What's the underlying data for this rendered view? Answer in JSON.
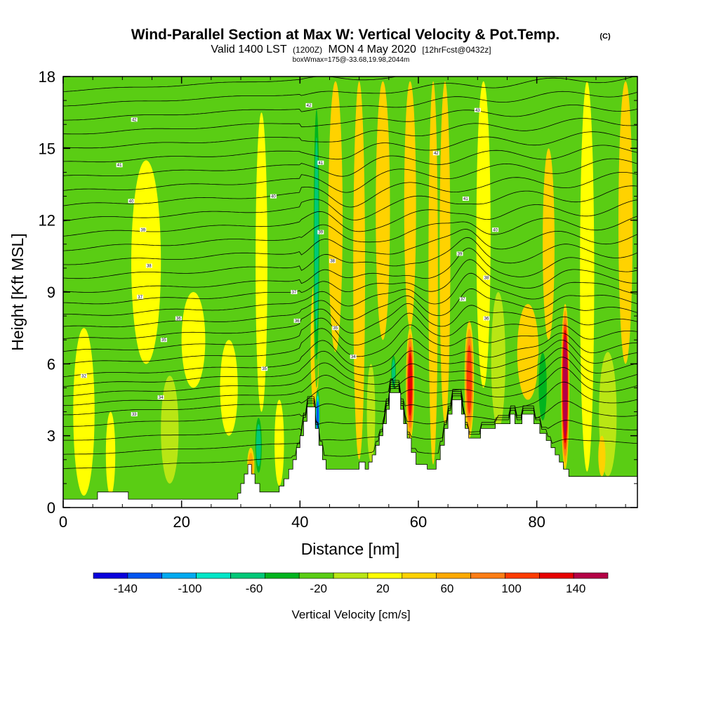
{
  "chart_data": {
    "type": "heatmap",
    "title": "Wind-Parallel Section at Max W: Vertical Velocity & Pot.Temp.",
    "title_tag": "(C)",
    "subtitle": {
      "valid_prefix": "Valid 1400 LST",
      "valid_utc": "(1200Z)",
      "valid_date": "MON 4 May 2020",
      "forecast": "[12hrFcst@0432z]",
      "box_info": "boxWmax=175@-33.68,19.98,2044m"
    },
    "xlabel": "Distance [nm]",
    "ylabel": "Height [Kft MSL]",
    "xlim": [
      0,
      97
    ],
    "ylim": [
      0,
      18
    ],
    "x_ticks": [
      {
        "value": 0,
        "label": "0"
      },
      {
        "value": 20,
        "label": "20"
      },
      {
        "value": 40,
        "label": "40"
      },
      {
        "value": 60,
        "label": "60"
      },
      {
        "value": 80,
        "label": "80"
      }
    ],
    "y_ticks": [
      {
        "value": 0,
        "label": "0"
      },
      {
        "value": 3,
        "label": "3"
      },
      {
        "value": 6,
        "label": "6"
      },
      {
        "value": 9,
        "label": "9"
      },
      {
        "value": 12,
        "label": "12"
      },
      {
        "value": 15,
        "label": "15"
      },
      {
        "value": 18,
        "label": "18"
      }
    ],
    "colorbar": {
      "title": "Vertical Velocity [cm/s]",
      "min": -160,
      "max": 160,
      "step": 20,
      "colors": [
        "#0a00dc",
        "#0055f0",
        "#00aaf0",
        "#00e6c8",
        "#00c878",
        "#00b41e",
        "#5acd14",
        "#b9e614",
        "#ffff00",
        "#ffd200",
        "#ffaa00",
        "#ff7d14",
        "#ff3c00",
        "#e60000",
        "#b40046"
      ],
      "labels": [
        {
          "value": -140,
          "label": "-140"
        },
        {
          "value": -100,
          "label": "-100"
        },
        {
          "value": -60,
          "label": "-60"
        },
        {
          "value": -20,
          "label": "-20"
        },
        {
          "value": 20,
          "label": "20"
        },
        {
          "value": 60,
          "label": "60"
        },
        {
          "value": 100,
          "label": "100"
        },
        {
          "value": 140,
          "label": "140"
        }
      ]
    },
    "terrain_profile": [
      [
        0,
        0.35
      ],
      [
        5.8,
        0.35
      ],
      [
        5.8,
        0.65
      ],
      [
        11,
        0.65
      ],
      [
        11,
        0.35
      ],
      [
        29.5,
        0.35
      ],
      [
        29.5,
        0.6
      ],
      [
        30,
        0.6
      ],
      [
        30,
        1.0
      ],
      [
        30.6,
        1.0
      ],
      [
        30.6,
        1.4
      ],
      [
        31.2,
        1.4
      ],
      [
        31.2,
        1.8
      ],
      [
        31.8,
        1.8
      ],
      [
        31.8,
        1.4
      ],
      [
        32.4,
        1.4
      ],
      [
        32.4,
        1.0
      ],
      [
        33.2,
        1.0
      ],
      [
        33.2,
        0.65
      ],
      [
        36.5,
        0.65
      ],
      [
        36.5,
        0.9
      ],
      [
        37.3,
        0.9
      ],
      [
        37.3,
        1.2
      ],
      [
        38.1,
        1.2
      ],
      [
        38.1,
        1.6
      ],
      [
        38.8,
        1.6
      ],
      [
        38.8,
        2.0
      ],
      [
        39.4,
        2.0
      ],
      [
        39.4,
        2.5
      ],
      [
        40,
        2.5
      ],
      [
        40,
        3.0
      ],
      [
        40.6,
        3.0
      ],
      [
        40.6,
        3.6
      ],
      [
        41.2,
        3.6
      ],
      [
        41.2,
        4.2
      ],
      [
        42.6,
        4.2
      ],
      [
        42.6,
        3.3
      ],
      [
        43.2,
        3.3
      ],
      [
        43.2,
        2.6
      ],
      [
        43.8,
        2.6
      ],
      [
        43.8,
        2.0
      ],
      [
        44.4,
        2.0
      ],
      [
        44.4,
        1.6
      ],
      [
        50,
        1.6
      ],
      [
        50,
        1.9
      ],
      [
        51,
        1.9
      ],
      [
        51,
        1.6
      ],
      [
        51.6,
        1.6
      ],
      [
        51.6,
        1.9
      ],
      [
        52.2,
        1.9
      ],
      [
        52.2,
        2.2
      ],
      [
        52.8,
        2.2
      ],
      [
        52.8,
        2.6
      ],
      [
        53.4,
        2.6
      ],
      [
        53.4,
        3.0
      ],
      [
        54,
        3.0
      ],
      [
        54,
        3.5
      ],
      [
        54.6,
        3.5
      ],
      [
        54.6,
        4.1
      ],
      [
        55.1,
        4.1
      ],
      [
        55.1,
        4.8
      ],
      [
        57,
        4.8
      ],
      [
        57,
        4.1
      ],
      [
        57.5,
        4.1
      ],
      [
        57.5,
        3.5
      ],
      [
        58.1,
        3.5
      ],
      [
        58.1,
        2.9
      ],
      [
        58.8,
        2.9
      ],
      [
        58.8,
        2.3
      ],
      [
        59.6,
        2.3
      ],
      [
        59.6,
        1.8
      ],
      [
        61.5,
        1.8
      ],
      [
        61.5,
        1.6
      ],
      [
        63,
        1.6
      ],
      [
        63,
        2.0
      ],
      [
        63.7,
        2.0
      ],
      [
        63.7,
        2.6
      ],
      [
        64.4,
        2.6
      ],
      [
        64.4,
        3.3
      ],
      [
        65,
        3.3
      ],
      [
        65,
        3.9
      ],
      [
        65.7,
        3.9
      ],
      [
        65.7,
        4.5
      ],
      [
        67.3,
        4.5
      ],
      [
        67.3,
        3.9
      ],
      [
        67.9,
        3.9
      ],
      [
        67.9,
        3.3
      ],
      [
        68.5,
        3.3
      ],
      [
        68.5,
        2.9
      ],
      [
        70.5,
        2.9
      ],
      [
        70.5,
        3.3
      ],
      [
        73,
        3.3
      ],
      [
        73,
        3.5
      ],
      [
        75.5,
        3.5
      ],
      [
        75.5,
        3.9
      ],
      [
        76.3,
        3.9
      ],
      [
        76.3,
        3.5
      ],
      [
        77.5,
        3.5
      ],
      [
        77.5,
        3.9
      ],
      [
        79.5,
        3.9
      ],
      [
        79.5,
        3.5
      ],
      [
        80.5,
        3.5
      ],
      [
        80.5,
        3.1
      ],
      [
        81.6,
        3.1
      ],
      [
        81.6,
        2.8
      ],
      [
        82.4,
        2.8
      ],
      [
        82.4,
        2.5
      ],
      [
        83.1,
        2.5
      ],
      [
        83.1,
        2.2
      ],
      [
        83.8,
        2.2
      ],
      [
        83.8,
        1.9
      ],
      [
        84.5,
        1.9
      ],
      [
        84.5,
        1.6
      ],
      [
        85.4,
        1.6
      ],
      [
        85.4,
        1.3
      ],
      [
        97,
        1.3
      ]
    ],
    "theta_contours": {
      "base_levels_kft": [
        1.6,
        2.2,
        2.8,
        3.4,
        3.9,
        4.3,
        4.7,
        5.1,
        5.5,
        6.0,
        6.5,
        7.0,
        7.5,
        8.0,
        8.5,
        9.0,
        9.6,
        10.2,
        10.8,
        11.4,
        12.0,
        12.6,
        13.2,
        13.8,
        14.4,
        15.0,
        15.6,
        16.2,
        16.8,
        17.4,
        18.0
      ],
      "labels": [
        {
          "x": 3.5,
          "y": 5.5,
          "label": "32"
        },
        {
          "x": 12,
          "y": 3.9,
          "label": "33"
        },
        {
          "x": 16.5,
          "y": 4.6,
          "label": "34"
        },
        {
          "x": 17,
          "y": 7.0,
          "label": "35"
        },
        {
          "x": 19.5,
          "y": 7.9,
          "label": "36"
        },
        {
          "x": 13,
          "y": 8.8,
          "label": "37"
        },
        {
          "x": 14.5,
          "y": 10.1,
          "label": "38"
        },
        {
          "x": 13.5,
          "y": 11.6,
          "label": "39"
        },
        {
          "x": 11.5,
          "y": 12.8,
          "label": "40"
        },
        {
          "x": 9.5,
          "y": 14.3,
          "label": "41"
        },
        {
          "x": 12,
          "y": 16.2,
          "label": "42"
        },
        {
          "x": 34,
          "y": 5.8,
          "label": "35"
        },
        {
          "x": 39.5,
          "y": 7.8,
          "label": "36"
        },
        {
          "x": 39,
          "y": 9.0,
          "label": "37"
        },
        {
          "x": 45.5,
          "y": 10.3,
          "label": "38"
        },
        {
          "x": 43.5,
          "y": 11.5,
          "label": "39"
        },
        {
          "x": 35.5,
          "y": 13.0,
          "label": "40"
        },
        {
          "x": 43.5,
          "y": 14.4,
          "label": "41"
        },
        {
          "x": 41.5,
          "y": 16.8,
          "label": "42"
        },
        {
          "x": 46,
          "y": 7.5,
          "label": "35"
        },
        {
          "x": 49,
          "y": 6.3,
          "label": "34"
        },
        {
          "x": 67.5,
          "y": 8.7,
          "label": "37"
        },
        {
          "x": 71.5,
          "y": 9.6,
          "label": "38"
        },
        {
          "x": 67,
          "y": 10.6,
          "label": "39"
        },
        {
          "x": 73,
          "y": 11.6,
          "label": "40"
        },
        {
          "x": 68,
          "y": 12.9,
          "label": "41"
        },
        {
          "x": 63,
          "y": 14.8,
          "label": "42"
        },
        {
          "x": 70,
          "y": 16.6,
          "label": "43"
        },
        {
          "x": 71.5,
          "y": 7.9,
          "label": "36"
        }
      ]
    },
    "velocity_features": [
      {
        "x": 3.5,
        "z0": 0.5,
        "z1": 7.5,
        "w": 1.8,
        "v": 5
      },
      {
        "x": 8,
        "z0": 0.5,
        "z1": 4.0,
        "w": 0.8,
        "v": 15
      },
      {
        "x": 18,
        "z0": 1.0,
        "z1": 5.5,
        "w": 1.5,
        "v": -15
      },
      {
        "x": 14,
        "z0": 6.0,
        "z1": 14.5,
        "w": 2.5,
        "v": 12
      },
      {
        "x": 22,
        "z0": 5.0,
        "z1": 9.0,
        "w": 2.0,
        "v": 10
      },
      {
        "x": 28,
        "z0": 3.0,
        "z1": 7.0,
        "w": 1.5,
        "v": 8
      },
      {
        "x": 31.7,
        "z0": 1.0,
        "z1": 2.5,
        "w": 0.6,
        "v": 50
      },
      {
        "x": 33,
        "z0": 1.2,
        "z1": 4.0,
        "w": 0.7,
        "v": -60
      },
      {
        "x": 33.5,
        "z0": 4.0,
        "z1": 16.5,
        "w": 1.0,
        "v": 12
      },
      {
        "x": 36.5,
        "z0": 0.9,
        "z1": 4.5,
        "w": 0.8,
        "v": 15
      },
      {
        "x": 39,
        "z0": 3.0,
        "z1": 13.0,
        "w": 1.0,
        "v": -20
      },
      {
        "x": 42.5,
        "z0": 4.0,
        "z1": 9.5,
        "w": 0.7,
        "v": 20
      },
      {
        "x": 43,
        "z0": 2.6,
        "z1": 5.0,
        "w": 0.4,
        "v": -120
      },
      {
        "x": 42.8,
        "z0": 5.0,
        "z1": 17.8,
        "w": 0.6,
        "v": -60
      },
      {
        "x": 43.8,
        "z0": 5.0,
        "z1": 17.8,
        "w": 0.5,
        "v": -25
      },
      {
        "x": 46,
        "z0": 6.5,
        "z1": 17.8,
        "w": 1.2,
        "v": 32
      },
      {
        "x": 47.5,
        "z0": 1.6,
        "z1": 6.0,
        "w": 1.0,
        "v": -20
      },
      {
        "x": 50,
        "z0": 2.0,
        "z1": 17.8,
        "w": 1.0,
        "v": 30
      },
      {
        "x": 52,
        "z0": 1.9,
        "z1": 6.0,
        "w": 0.7,
        "v": -15
      },
      {
        "x": 54,
        "z0": 7.0,
        "z1": 17.8,
        "w": 1.2,
        "v": 28
      },
      {
        "x": 55.8,
        "z0": 4.8,
        "z1": 6.5,
        "w": 0.5,
        "v": -70
      },
      {
        "x": 56.8,
        "z0": 4.5,
        "z1": 17.8,
        "w": 0.5,
        "v": -25
      },
      {
        "x": 58.6,
        "z0": 2.8,
        "z1": 7.5,
        "w": 0.7,
        "v": 110
      },
      {
        "x": 58.6,
        "z0": 7.5,
        "z1": 17.8,
        "w": 1.0,
        "v": 20
      },
      {
        "x": 60.5,
        "z0": 2.5,
        "z1": 7.0,
        "w": 1.0,
        "v": -20
      },
      {
        "x": 62.5,
        "z0": 1.8,
        "z1": 17.8,
        "w": 0.8,
        "v": 25
      },
      {
        "x": 64.5,
        "z0": 3.5,
        "z1": 17.8,
        "w": 0.9,
        "v": 28
      },
      {
        "x": 66.2,
        "z0": 4.5,
        "z1": 15.0,
        "w": 0.6,
        "v": -25
      },
      {
        "x": 68.6,
        "z0": 2.9,
        "z1": 7.8,
        "w": 0.8,
        "v": 95
      },
      {
        "x": 71,
        "z0": 5.0,
        "z1": 17.8,
        "w": 1.2,
        "v": 14
      },
      {
        "x": 73.5,
        "z0": 3.3,
        "z1": 9.0,
        "w": 1.2,
        "v": -18
      },
      {
        "x": 78.5,
        "z0": 4.5,
        "z1": 8.5,
        "w": 1.8,
        "v": 25
      },
      {
        "x": 81,
        "z0": 3.1,
        "z1": 7.0,
        "w": 1.0,
        "v": -50
      },
      {
        "x": 82,
        "z0": 7.0,
        "z1": 15.0,
        "w": 1.0,
        "v": 20
      },
      {
        "x": 84.8,
        "z0": 1.6,
        "z1": 8.5,
        "w": 0.7,
        "v": 150
      },
      {
        "x": 86.8,
        "z0": 1.3,
        "z1": 7.0,
        "w": 1.0,
        "v": -25
      },
      {
        "x": 88.5,
        "z0": 1.5,
        "z1": 17.8,
        "w": 1.2,
        "v": 15
      },
      {
        "x": 92,
        "z0": 1.3,
        "z1": 6.5,
        "w": 1.5,
        "v": -15
      },
      {
        "x": 95,
        "z0": 6.0,
        "z1": 17.8,
        "w": 1.2,
        "v": 20
      },
      {
        "x": 91,
        "z0": 1.3,
        "z1": 3.0,
        "w": 0.6,
        "v": 25
      }
    ]
  }
}
